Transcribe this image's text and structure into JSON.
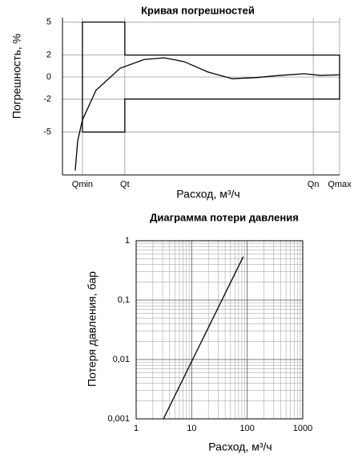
{
  "chart_data": [
    {
      "type": "line",
      "title": "Кривая погрешностей",
      "x_label": "Расход, м³/ч",
      "y_label": "Погрешность, %",
      "xlim": [
        0,
        100
      ],
      "ylim": [
        -8.9,
        5.4
      ],
      "xticks": [
        {
          "value": 7.2,
          "label": "Qmin"
        },
        {
          "value": 22.5,
          "label": "Qt"
        },
        {
          "value": 90.5,
          "label": "Qn"
        },
        {
          "value": 100,
          "label": "Qmax"
        }
      ],
      "yticks": [
        5,
        2,
        0,
        -2,
        -5
      ],
      "grid": true,
      "log": false,
      "series": [
        {
          "color": "#000000",
          "x": [
            4.6,
            5.5,
            7.2,
            12.1,
            20.8,
            29.5,
            36.7,
            43.9,
            52.6,
            61.3,
            70,
            78.6,
            87.3,
            93,
            100
          ],
          "values": [
            -8.5,
            -5.8,
            -3.9,
            -1.2,
            0.8,
            1.6,
            1.75,
            1.4,
            0.45,
            -0.15,
            -0.05,
            0.15,
            0.3,
            0.15,
            0.2
          ]
        },
        {
          "color": "#000000",
          "x": [
            7.2,
            7.2,
            22.5,
            22.5,
            100,
            100,
            22.5,
            22.5,
            7.2
          ],
          "values": [
            -5,
            5,
            5,
            2,
            2,
            -2,
            -2,
            -5,
            -5
          ]
        }
      ]
    },
    {
      "type": "line",
      "title": "Диаграмма потери давления",
      "x_label": "Расход, м³/ч",
      "y_label": "Потеря давления, бар",
      "xlim": [
        1,
        1000
      ],
      "ylim": [
        0.001,
        1
      ],
      "xticks": [
        1,
        10,
        100,
        1000
      ],
      "yticks": [
        {
          "value": 0.001,
          "label": "0,001"
        },
        {
          "value": 0.01,
          "label": "0,01"
        },
        {
          "value": 0.1,
          "label": "0,1"
        },
        1
      ],
      "grid": true,
      "log": true,
      "series": [
        {
          "color": "#000000",
          "x": [
            3.1,
            85
          ],
          "values": [
            0.001,
            0.54
          ]
        }
      ]
    }
  ]
}
